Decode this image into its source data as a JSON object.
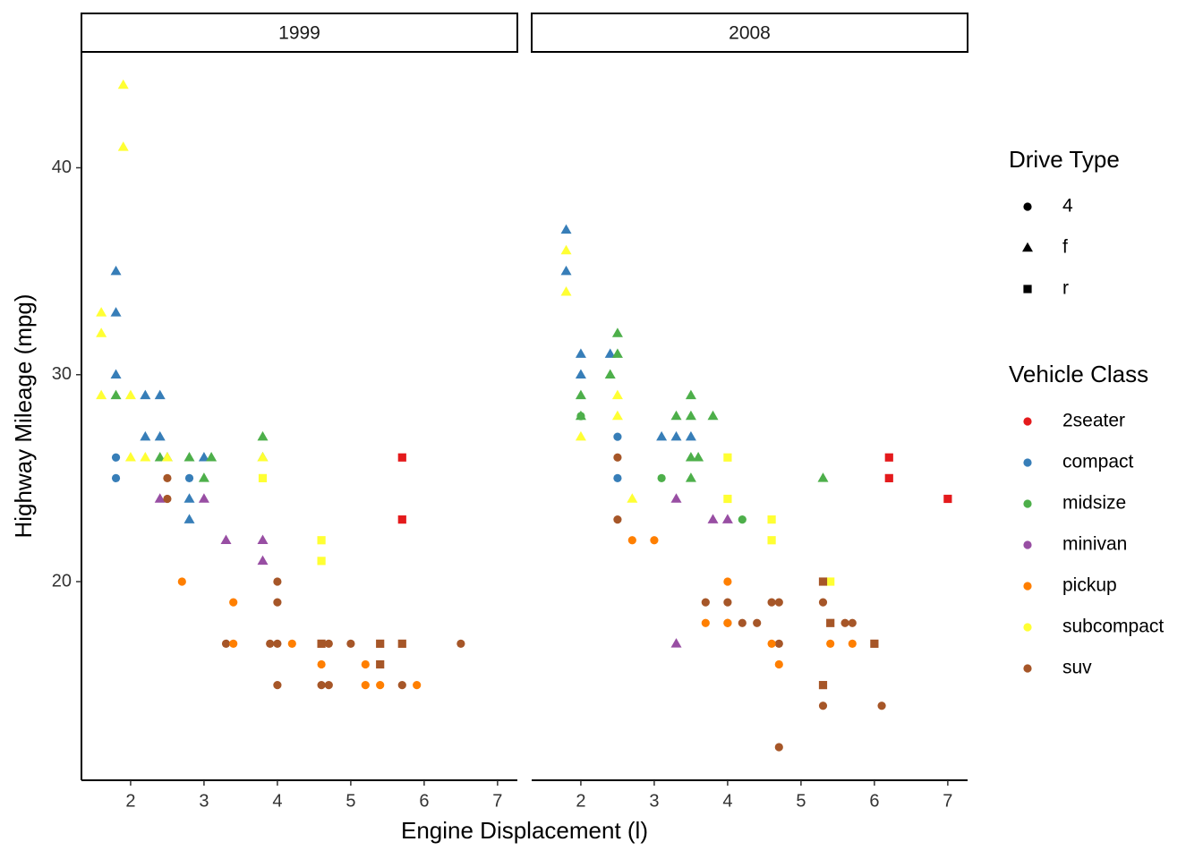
{
  "chart_data": {
    "type": "scatter",
    "x_label": "Engine Displacement (l)",
    "y_label": "Highway Mileage (mpg)",
    "xlim": [
      1.33,
      7.27
    ],
    "xticks": [
      2,
      3,
      4,
      5,
      6,
      7
    ],
    "ylim": [
      10.4,
      45.6
    ],
    "yticks": [
      20,
      30,
      40
    ],
    "shape_legend": {
      "title": "Drive Type",
      "entries": [
        {
          "name": "4",
          "shape": "circle"
        },
        {
          "name": "f",
          "shape": "triangle"
        },
        {
          "name": "r",
          "shape": "square"
        }
      ]
    },
    "color_legend": {
      "title": "Vehicle Class",
      "entries": [
        {
          "name": "2seater",
          "color": "#e41a1c"
        },
        {
          "name": "compact",
          "color": "#377eb8"
        },
        {
          "name": "midsize",
          "color": "#4daf4a"
        },
        {
          "name": "minivan",
          "color": "#984ea3"
        },
        {
          "name": "pickup",
          "color": "#ff7f00"
        },
        {
          "name": "subcompact",
          "color": "#ffff33"
        },
        {
          "name": "suv",
          "color": "#a65628"
        }
      ]
    },
    "panels": [
      {
        "label": "1999",
        "points": [
          {
            "x": 1.9,
            "y": 44,
            "drive": "f",
            "class": "subcompact"
          },
          {
            "x": 1.9,
            "y": 41,
            "drive": "f",
            "class": "subcompact"
          },
          {
            "x": 1.6,
            "y": 33,
            "drive": "f",
            "class": "subcompact"
          },
          {
            "x": 1.6,
            "y": 32,
            "drive": "f",
            "class": "subcompact"
          },
          {
            "x": 1.6,
            "y": 29,
            "drive": "f",
            "class": "subcompact"
          },
          {
            "x": 2.0,
            "y": 29,
            "drive": "f",
            "class": "subcompact"
          },
          {
            "x": 1.8,
            "y": 29,
            "drive": "f",
            "class": "midsize"
          },
          {
            "x": 1.8,
            "y": 35,
            "drive": "f",
            "class": "compact"
          },
          {
            "x": 1.8,
            "y": 33,
            "drive": "f",
            "class": "compact"
          },
          {
            "x": 1.8,
            "y": 30,
            "drive": "f",
            "class": "compact"
          },
          {
            "x": 2.2,
            "y": 29,
            "drive": "f",
            "class": "compact"
          },
          {
            "x": 2.4,
            "y": 29,
            "drive": "f",
            "class": "compact"
          },
          {
            "x": 2.2,
            "y": 27,
            "drive": "f",
            "class": "compact"
          },
          {
            "x": 2.4,
            "y": 27,
            "drive": "f",
            "class": "compact"
          },
          {
            "x": 2.5,
            "y": 26,
            "drive": "f",
            "class": "compact"
          },
          {
            "x": 3.0,
            "y": 26,
            "drive": "f",
            "class": "compact"
          },
          {
            "x": 2.8,
            "y": 24,
            "drive": "f",
            "class": "compact"
          },
          {
            "x": 2.8,
            "y": 23,
            "drive": "f",
            "class": "compact"
          },
          {
            "x": 2.4,
            "y": 26,
            "drive": "f",
            "class": "midsize"
          },
          {
            "x": 2.8,
            "y": 26,
            "drive": "f",
            "class": "midsize"
          },
          {
            "x": 3.1,
            "y": 26,
            "drive": "f",
            "class": "midsize"
          },
          {
            "x": 3.0,
            "y": 25,
            "drive": "f",
            "class": "midsize"
          },
          {
            "x": 3.8,
            "y": 27,
            "drive": "f",
            "class": "midsize"
          },
          {
            "x": 3.8,
            "y": 26,
            "drive": "f",
            "class": "midsize"
          },
          {
            "x": 2.0,
            "y": 26,
            "drive": "f",
            "class": "subcompact"
          },
          {
            "x": 2.2,
            "y": 26,
            "drive": "f",
            "class": "subcompact"
          },
          {
            "x": 2.5,
            "y": 26,
            "drive": "f",
            "class": "subcompact"
          },
          {
            "x": 3.8,
            "y": 26,
            "drive": "f",
            "class": "subcompact"
          },
          {
            "x": 1.8,
            "y": 26,
            "drive": "4",
            "class": "compact"
          },
          {
            "x": 1.8,
            "y": 25,
            "drive": "4",
            "class": "compact"
          },
          {
            "x": 2.8,
            "y": 25,
            "drive": "4",
            "class": "compact"
          },
          {
            "x": 2.4,
            "y": 24,
            "drive": "f",
            "class": "minivan"
          },
          {
            "x": 3.0,
            "y": 24,
            "drive": "f",
            "class": "minivan"
          },
          {
            "x": 3.3,
            "y": 22,
            "drive": "f",
            "class": "minivan"
          },
          {
            "x": 3.8,
            "y": 22,
            "drive": "f",
            "class": "minivan"
          },
          {
            "x": 3.8,
            "y": 21,
            "drive": "f",
            "class": "minivan"
          },
          {
            "x": 3.8,
            "y": 25,
            "drive": "r",
            "class": "subcompact"
          },
          {
            "x": 4.6,
            "y": 22,
            "drive": "r",
            "class": "subcompact"
          },
          {
            "x": 4.6,
            "y": 21,
            "drive": "r",
            "class": "subcompact"
          },
          {
            "x": 5.7,
            "y": 26,
            "drive": "r",
            "class": "2seater"
          },
          {
            "x": 5.7,
            "y": 23,
            "drive": "r",
            "class": "2seater"
          },
          {
            "x": 2.5,
            "y": 25,
            "drive": "4",
            "class": "suv"
          },
          {
            "x": 2.5,
            "y": 24,
            "drive": "4",
            "class": "suv"
          },
          {
            "x": 4.0,
            "y": 20,
            "drive": "4",
            "class": "suv"
          },
          {
            "x": 4.0,
            "y": 19,
            "drive": "4",
            "class": "suv"
          },
          {
            "x": 3.3,
            "y": 17,
            "drive": "4",
            "class": "suv"
          },
          {
            "x": 3.9,
            "y": 17,
            "drive": "4",
            "class": "suv"
          },
          {
            "x": 4.0,
            "y": 17,
            "drive": "4",
            "class": "suv"
          },
          {
            "x": 4.0,
            "y": 15,
            "drive": "4",
            "class": "suv"
          },
          {
            "x": 4.7,
            "y": 17,
            "drive": "4",
            "class": "suv"
          },
          {
            "x": 5.0,
            "y": 17,
            "drive": "4",
            "class": "suv"
          },
          {
            "x": 4.6,
            "y": 15,
            "drive": "4",
            "class": "suv"
          },
          {
            "x": 4.7,
            "y": 15,
            "drive": "4",
            "class": "suv"
          },
          {
            "x": 5.7,
            "y": 15,
            "drive": "4",
            "class": "suv"
          },
          {
            "x": 6.5,
            "y": 17,
            "drive": "4",
            "class": "suv"
          },
          {
            "x": 4.6,
            "y": 17,
            "drive": "r",
            "class": "suv"
          },
          {
            "x": 5.4,
            "y": 17,
            "drive": "r",
            "class": "suv"
          },
          {
            "x": 5.7,
            "y": 17,
            "drive": "r",
            "class": "suv"
          },
          {
            "x": 5.4,
            "y": 16,
            "drive": "r",
            "class": "suv"
          },
          {
            "x": 2.7,
            "y": 20,
            "drive": "4",
            "class": "pickup"
          },
          {
            "x": 3.4,
            "y": 19,
            "drive": "4",
            "class": "pickup"
          },
          {
            "x": 3.4,
            "y": 17,
            "drive": "4",
            "class": "pickup"
          },
          {
            "x": 4.2,
            "y": 17,
            "drive": "4",
            "class": "pickup"
          },
          {
            "x": 4.6,
            "y": 16,
            "drive": "4",
            "class": "pickup"
          },
          {
            "x": 5.2,
            "y": 16,
            "drive": "4",
            "class": "pickup"
          },
          {
            "x": 5.2,
            "y": 15,
            "drive": "4",
            "class": "pickup"
          },
          {
            "x": 5.4,
            "y": 15,
            "drive": "4",
            "class": "pickup"
          },
          {
            "x": 5.9,
            "y": 15,
            "drive": "4",
            "class": "pickup"
          }
        ]
      },
      {
        "label": "2008",
        "points": [
          {
            "x": 1.8,
            "y": 37,
            "drive": "f",
            "class": "compact"
          },
          {
            "x": 1.8,
            "y": 35,
            "drive": "f",
            "class": "compact"
          },
          {
            "x": 2.0,
            "y": 31,
            "drive": "f",
            "class": "compact"
          },
          {
            "x": 2.0,
            "y": 30,
            "drive": "f",
            "class": "compact"
          },
          {
            "x": 2.4,
            "y": 31,
            "drive": "f",
            "class": "compact"
          },
          {
            "x": 3.1,
            "y": 27,
            "drive": "f",
            "class": "compact"
          },
          {
            "x": 3.3,
            "y": 27,
            "drive": "f",
            "class": "compact"
          },
          {
            "x": 3.5,
            "y": 27,
            "drive": "f",
            "class": "compact"
          },
          {
            "x": 1.8,
            "y": 36,
            "drive": "f",
            "class": "subcompact"
          },
          {
            "x": 1.8,
            "y": 34,
            "drive": "f",
            "class": "subcompact"
          },
          {
            "x": 2.5,
            "y": 29,
            "drive": "f",
            "class": "subcompact"
          },
          {
            "x": 2.5,
            "y": 28,
            "drive": "f",
            "class": "subcompact"
          },
          {
            "x": 2.7,
            "y": 24,
            "drive": "f",
            "class": "subcompact"
          },
          {
            "x": 2.5,
            "y": 32,
            "drive": "f",
            "class": "midsize"
          },
          {
            "x": 2.5,
            "y": 31,
            "drive": "f",
            "class": "midsize"
          },
          {
            "x": 2.4,
            "y": 30,
            "drive": "f",
            "class": "midsize"
          },
          {
            "x": 2.0,
            "y": 29,
            "drive": "f",
            "class": "midsize"
          },
          {
            "x": 2.0,
            "y": 28,
            "drive": "f",
            "class": "midsize"
          },
          {
            "x": 3.3,
            "y": 28,
            "drive": "f",
            "class": "midsize"
          },
          {
            "x": 3.5,
            "y": 29,
            "drive": "f",
            "class": "midsize"
          },
          {
            "x": 3.5,
            "y": 28,
            "drive": "f",
            "class": "midsize"
          },
          {
            "x": 3.8,
            "y": 28,
            "drive": "f",
            "class": "midsize"
          },
          {
            "x": 3.5,
            "y": 26,
            "drive": "f",
            "class": "midsize"
          },
          {
            "x": 3.6,
            "y": 26,
            "drive": "f",
            "class": "midsize"
          },
          {
            "x": 3.5,
            "y": 25,
            "drive": "f",
            "class": "midsize"
          },
          {
            "x": 5.3,
            "y": 25,
            "drive": "f",
            "class": "midsize"
          },
          {
            "x": 3.1,
            "y": 25,
            "drive": "4",
            "class": "midsize"
          },
          {
            "x": 4.2,
            "y": 23,
            "drive": "4",
            "class": "midsize"
          },
          {
            "x": 2.0,
            "y": 28,
            "drive": "4",
            "class": "midsize"
          },
          {
            "x": 2.0,
            "y": 27,
            "drive": "f",
            "class": "subcompact"
          },
          {
            "x": 2.5,
            "y": 27,
            "drive": "4",
            "class": "compact"
          },
          {
            "x": 2.5,
            "y": 25,
            "drive": "4",
            "class": "compact"
          },
          {
            "x": 3.3,
            "y": 24,
            "drive": "f",
            "class": "minivan"
          },
          {
            "x": 3.8,
            "y": 23,
            "drive": "f",
            "class": "minivan"
          },
          {
            "x": 4.0,
            "y": 23,
            "drive": "f",
            "class": "minivan"
          },
          {
            "x": 3.3,
            "y": 17,
            "drive": "f",
            "class": "minivan"
          },
          {
            "x": 4.0,
            "y": 26,
            "drive": "r",
            "class": "subcompact"
          },
          {
            "x": 4.0,
            "y": 24,
            "drive": "r",
            "class": "subcompact"
          },
          {
            "x": 4.6,
            "y": 23,
            "drive": "r",
            "class": "subcompact"
          },
          {
            "x": 4.6,
            "y": 22,
            "drive": "r",
            "class": "subcompact"
          },
          {
            "x": 5.4,
            "y": 20,
            "drive": "r",
            "class": "subcompact"
          },
          {
            "x": 6.2,
            "y": 26,
            "drive": "r",
            "class": "2seater"
          },
          {
            "x": 6.2,
            "y": 25,
            "drive": "r",
            "class": "2seater"
          },
          {
            "x": 7.0,
            "y": 24,
            "drive": "r",
            "class": "2seater"
          },
          {
            "x": 2.5,
            "y": 26,
            "drive": "4",
            "class": "suv"
          },
          {
            "x": 2.5,
            "y": 23,
            "drive": "4",
            "class": "suv"
          },
          {
            "x": 3.7,
            "y": 19,
            "drive": "4",
            "class": "suv"
          },
          {
            "x": 4.0,
            "y": 19,
            "drive": "4",
            "class": "suv"
          },
          {
            "x": 4.0,
            "y": 18,
            "drive": "4",
            "class": "suv"
          },
          {
            "x": 4.2,
            "y": 18,
            "drive": "4",
            "class": "suv"
          },
          {
            "x": 4.4,
            "y": 18,
            "drive": "4",
            "class": "suv"
          },
          {
            "x": 4.6,
            "y": 19,
            "drive": "4",
            "class": "suv"
          },
          {
            "x": 4.7,
            "y": 19,
            "drive": "4",
            "class": "suv"
          },
          {
            "x": 4.7,
            "y": 17,
            "drive": "4",
            "class": "suv"
          },
          {
            "x": 4.7,
            "y": 12,
            "drive": "4",
            "class": "suv"
          },
          {
            "x": 5.3,
            "y": 19,
            "drive": "4",
            "class": "suv"
          },
          {
            "x": 5.3,
            "y": 14,
            "drive": "4",
            "class": "suv"
          },
          {
            "x": 5.6,
            "y": 18,
            "drive": "4",
            "class": "suv"
          },
          {
            "x": 5.7,
            "y": 18,
            "drive": "4",
            "class": "suv"
          },
          {
            "x": 6.1,
            "y": 14,
            "drive": "4",
            "class": "suv"
          },
          {
            "x": 5.3,
            "y": 20,
            "drive": "r",
            "class": "suv"
          },
          {
            "x": 5.4,
            "y": 18,
            "drive": "r",
            "class": "suv"
          },
          {
            "x": 6.0,
            "y": 17,
            "drive": "r",
            "class": "suv"
          },
          {
            "x": 5.3,
            "y": 15,
            "drive": "r",
            "class": "suv"
          },
          {
            "x": 2.7,
            "y": 22,
            "drive": "4",
            "class": "pickup"
          },
          {
            "x": 3.0,
            "y": 22,
            "drive": "4",
            "class": "pickup"
          },
          {
            "x": 3.7,
            "y": 18,
            "drive": "4",
            "class": "pickup"
          },
          {
            "x": 4.0,
            "y": 20,
            "drive": "4",
            "class": "pickup"
          },
          {
            "x": 4.0,
            "y": 18,
            "drive": "4",
            "class": "pickup"
          },
          {
            "x": 4.6,
            "y": 17,
            "drive": "4",
            "class": "pickup"
          },
          {
            "x": 4.7,
            "y": 16,
            "drive": "4",
            "class": "pickup"
          },
          {
            "x": 5.4,
            "y": 17,
            "drive": "4",
            "class": "pickup"
          },
          {
            "x": 5.7,
            "y": 17,
            "drive": "4",
            "class": "pickup"
          }
        ]
      }
    ]
  }
}
